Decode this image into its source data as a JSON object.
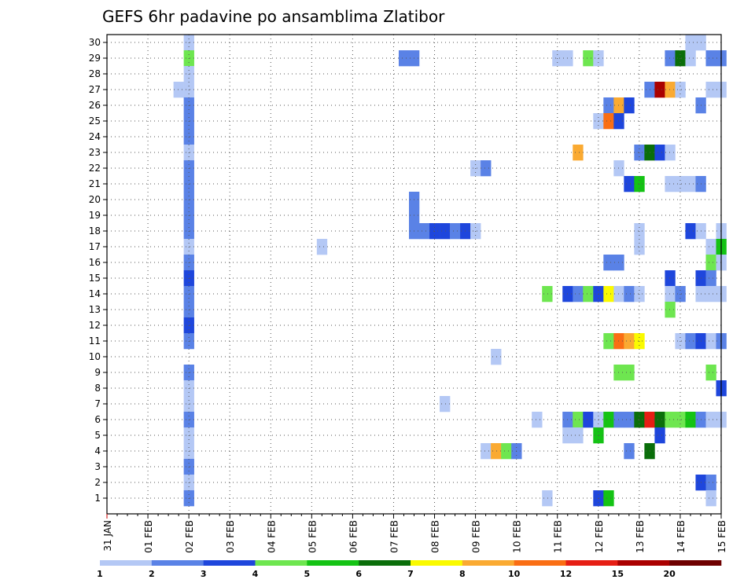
{
  "chart_data": {
    "type": "heatmap",
    "title": "GEFS 6hr padavine po ansamblima Zlatibor",
    "xlabel": "",
    "ylabel": "",
    "members": [
      1,
      2,
      3,
      4,
      5,
      6,
      7,
      8,
      9,
      10,
      11,
      12,
      13,
      14,
      15,
      16,
      17,
      18,
      19,
      20,
      21,
      22,
      23,
      24,
      25,
      26,
      27,
      28,
      29,
      30
    ],
    "x_start": "31 JAN",
    "x_step_hours": 6,
    "x_range_steps": [
      0,
      60
    ],
    "x_tick_labels": [
      "31 JAN",
      "01 FEB",
      "02 FEB",
      "03 FEB",
      "04 FEB",
      "05 FEB",
      "06 FEB",
      "07 FEB",
      "08 FEB",
      "09 FEB",
      "10 FEB",
      "11 FEB",
      "12 FEB",
      "13 FEB",
      "14 FEB",
      "15 FEB"
    ],
    "grid": true,
    "legend": {
      "placement": "bottom",
      "labels": [
        "1",
        "2",
        "3",
        "4",
        "5",
        "6",
        "7",
        "8",
        "10",
        "12",
        "15",
        "20"
      ],
      "colors": [
        "#b4c8f5",
        "#5a82e6",
        "#1e46dc",
        "#6ee650",
        "#14c314",
        "#0a6e0a",
        "#fafa00",
        "#faaa32",
        "#fa6e14",
        "#e61e14",
        "#aa0000",
        "#6e0000"
      ]
    },
    "cells": [
      {
        "member": 30,
        "step": 8,
        "color": "#b4c8f5"
      },
      {
        "member": 29,
        "step": 8,
        "color": "#6ee650"
      },
      {
        "member": 28,
        "step": 8,
        "color": "#b4c8f5"
      },
      {
        "member": 27,
        "step": 7,
        "color": "#b4c8f5"
      },
      {
        "member": 27,
        "step": 8,
        "color": "#b4c8f5"
      },
      {
        "member": 26,
        "step": 8,
        "color": "#5a82e6"
      },
      {
        "member": 25,
        "step": 8,
        "color": "#5a82e6"
      },
      {
        "member": 24,
        "step": 8,
        "color": "#5a82e6"
      },
      {
        "member": 23,
        "step": 8,
        "color": "#b4c8f5"
      },
      {
        "member": 22,
        "step": 8,
        "color": "#5a82e6"
      },
      {
        "member": 21,
        "step": 8,
        "color": "#5a82e6"
      },
      {
        "member": 20,
        "step": 8,
        "color": "#5a82e6"
      },
      {
        "member": 19,
        "step": 8,
        "color": "#5a82e6"
      },
      {
        "member": 18,
        "step": 8,
        "color": "#5a82e6"
      },
      {
        "member": 17,
        "step": 8,
        "color": "#b4c8f5"
      },
      {
        "member": 16,
        "step": 8,
        "color": "#5a82e6"
      },
      {
        "member": 15,
        "step": 8,
        "color": "#1e46dc"
      },
      {
        "member": 14,
        "step": 8,
        "color": "#5a82e6"
      },
      {
        "member": 13,
        "step": 8,
        "color": "#5a82e6"
      },
      {
        "member": 12,
        "step": 8,
        "color": "#1e46dc"
      },
      {
        "member": 11,
        "step": 8,
        "color": "#5a82e6"
      },
      {
        "member": 9,
        "step": 8,
        "color": "#5a82e6"
      },
      {
        "member": 8,
        "step": 8,
        "color": "#b4c8f5"
      },
      {
        "member": 7,
        "step": 8,
        "color": "#b4c8f5"
      },
      {
        "member": 6,
        "step": 8,
        "color": "#5a82e6"
      },
      {
        "member": 5,
        "step": 8,
        "color": "#b4c8f5"
      },
      {
        "member": 4,
        "step": 8,
        "color": "#b4c8f5"
      },
      {
        "member": 3,
        "step": 8,
        "color": "#5a82e6"
      },
      {
        "member": 2,
        "step": 8,
        "color": "#b4c8f5"
      },
      {
        "member": 1,
        "step": 8,
        "color": "#5a82e6"
      },
      {
        "member": 29,
        "step": 29,
        "color": "#5a82e6"
      },
      {
        "member": 29,
        "step": 30,
        "color": "#5a82e6"
      },
      {
        "member": 29,
        "step": 44,
        "color": "#b4c8f5"
      },
      {
        "member": 29,
        "step": 45,
        "color": "#b4c8f5"
      },
      {
        "member": 29,
        "step": 47,
        "color": "#6ee650"
      },
      {
        "member": 29,
        "step": 48,
        "color": "#b4c8f5"
      },
      {
        "member": 29,
        "step": 55,
        "color": "#5a82e6"
      },
      {
        "member": 29,
        "step": 56,
        "color": "#0a6e0a"
      },
      {
        "member": 29,
        "step": 57,
        "color": "#b4c8f5"
      },
      {
        "member": 29,
        "step": 59,
        "color": "#5a82e6"
      },
      {
        "member": 29,
        "step": 60,
        "color": "#5a82e6"
      },
      {
        "member": 30,
        "step": 57,
        "color": "#b4c8f5"
      },
      {
        "member": 30,
        "step": 58,
        "color": "#b4c8f5"
      },
      {
        "member": 27,
        "step": 53,
        "color": "#5a82e6"
      },
      {
        "member": 27,
        "step": 54,
        "color": "#aa0000"
      },
      {
        "member": 27,
        "step": 55,
        "color": "#faaa32"
      },
      {
        "member": 27,
        "step": 56,
        "color": "#b4c8f5"
      },
      {
        "member": 27,
        "step": 59,
        "color": "#b4c8f5"
      },
      {
        "member": 27,
        "step": 60,
        "color": "#b4c8f5"
      },
      {
        "member": 26,
        "step": 49,
        "color": "#5a82e6"
      },
      {
        "member": 26,
        "step": 50,
        "color": "#faaa32"
      },
      {
        "member": 26,
        "step": 51,
        "color": "#1e46dc"
      },
      {
        "member": 26,
        "step": 58,
        "color": "#5a82e6"
      },
      {
        "member": 25,
        "step": 48,
        "color": "#b4c8f5"
      },
      {
        "member": 25,
        "step": 49,
        "color": "#fa6e14"
      },
      {
        "member": 25,
        "step": 50,
        "color": "#1e46dc"
      },
      {
        "member": 23,
        "step": 46,
        "color": "#faaa32"
      },
      {
        "member": 23,
        "step": 52,
        "color": "#5a82e6"
      },
      {
        "member": 23,
        "step": 53,
        "color": "#0a6e0a"
      },
      {
        "member": 23,
        "step": 54,
        "color": "#1e46dc"
      },
      {
        "member": 23,
        "step": 55,
        "color": "#b4c8f5"
      },
      {
        "member": 22,
        "step": 36,
        "color": "#b4c8f5"
      },
      {
        "member": 22,
        "step": 37,
        "color": "#5a82e6"
      },
      {
        "member": 22,
        "step": 50,
        "color": "#b4c8f5"
      },
      {
        "member": 21,
        "step": 51,
        "color": "#1e46dc"
      },
      {
        "member": 21,
        "step": 52,
        "color": "#14c314"
      },
      {
        "member": 21,
        "step": 55,
        "color": "#b4c8f5"
      },
      {
        "member": 21,
        "step": 56,
        "color": "#b4c8f5"
      },
      {
        "member": 21,
        "step": 57,
        "color": "#b4c8f5"
      },
      {
        "member": 21,
        "step": 58,
        "color": "#5a82e6"
      },
      {
        "member": 20,
        "step": 30,
        "color": "#5a82e6"
      },
      {
        "member": 19,
        "step": 30,
        "color": "#5a82e6"
      },
      {
        "member": 18,
        "step": 30,
        "color": "#5a82e6"
      },
      {
        "member": 18,
        "step": 31,
        "color": "#5a82e6"
      },
      {
        "member": 18,
        "step": 32,
        "color": "#1e46dc"
      },
      {
        "member": 18,
        "step": 33,
        "color": "#1e46dc"
      },
      {
        "member": 18,
        "step": 34,
        "color": "#5a82e6"
      },
      {
        "member": 18,
        "step": 35,
        "color": "#1e46dc"
      },
      {
        "member": 18,
        "step": 36,
        "color": "#b4c8f5"
      },
      {
        "member": 18,
        "step": 52,
        "color": "#b4c8f5"
      },
      {
        "member": 18,
        "step": 57,
        "color": "#1e46dc"
      },
      {
        "member": 18,
        "step": 58,
        "color": "#b4c8f5"
      },
      {
        "member": 18,
        "step": 60,
        "color": "#b4c8f5"
      },
      {
        "member": 17,
        "step": 21,
        "color": "#b4c8f5"
      },
      {
        "member": 17,
        "step": 52,
        "color": "#b4c8f5"
      },
      {
        "member": 17,
        "step": 59,
        "color": "#b4c8f5"
      },
      {
        "member": 17,
        "step": 60,
        "color": "#14c314"
      },
      {
        "member": 16,
        "step": 59,
        "color": "#6ee650"
      },
      {
        "member": 16,
        "step": 60,
        "color": "#b4c8f5"
      },
      {
        "member": 16,
        "step": 49,
        "color": "#5a82e6"
      },
      {
        "member": 16,
        "step": 50,
        "color": "#5a82e6"
      },
      {
        "member": 15,
        "step": 55,
        "color": "#1e46dc"
      },
      {
        "member": 15,
        "step": 58,
        "color": "#1e46dc"
      },
      {
        "member": 15,
        "step": 59,
        "color": "#5a82e6"
      },
      {
        "member": 14,
        "step": 43,
        "color": "#6ee650"
      },
      {
        "member": 14,
        "step": 45,
        "color": "#1e46dc"
      },
      {
        "member": 14,
        "step": 46,
        "color": "#5a82e6"
      },
      {
        "member": 14,
        "step": 47,
        "color": "#6ee650"
      },
      {
        "member": 14,
        "step": 48,
        "color": "#1e46dc"
      },
      {
        "member": 14,
        "step": 49,
        "color": "#fafa00"
      },
      {
        "member": 14,
        "step": 50,
        "color": "#b4c8f5"
      },
      {
        "member": 14,
        "step": 51,
        "color": "#5a82e6"
      },
      {
        "member": 14,
        "step": 52,
        "color": "#b4c8f5"
      },
      {
        "member": 14,
        "step": 55,
        "color": "#b4c8f5"
      },
      {
        "member": 14,
        "step": 56,
        "color": "#5a82e6"
      },
      {
        "member": 14,
        "step": 58,
        "color": "#b4c8f5"
      },
      {
        "member": 14,
        "step": 59,
        "color": "#b4c8f5"
      },
      {
        "member": 14,
        "step": 60,
        "color": "#b4c8f5"
      },
      {
        "member": 13,
        "step": 55,
        "color": "#6ee650"
      },
      {
        "member": 11,
        "step": 49,
        "color": "#6ee650"
      },
      {
        "member": 11,
        "step": 50,
        "color": "#fa6e14"
      },
      {
        "member": 11,
        "step": 51,
        "color": "#faaa32"
      },
      {
        "member": 11,
        "step": 52,
        "color": "#fafa00"
      },
      {
        "member": 11,
        "step": 56,
        "color": "#b4c8f5"
      },
      {
        "member": 11,
        "step": 57,
        "color": "#5a82e6"
      },
      {
        "member": 11,
        "step": 58,
        "color": "#1e46dc"
      },
      {
        "member": 11,
        "step": 59,
        "color": "#b4c8f5"
      },
      {
        "member": 11,
        "step": 60,
        "color": "#5a82e6"
      },
      {
        "member": 10,
        "step": 38,
        "color": "#b4c8f5"
      },
      {
        "member": 9,
        "step": 50,
        "color": "#6ee650"
      },
      {
        "member": 9,
        "step": 51,
        "color": "#6ee650"
      },
      {
        "member": 9,
        "step": 59,
        "color": "#6ee650"
      },
      {
        "member": 8,
        "step": 60,
        "color": "#1e46dc"
      },
      {
        "member": 7,
        "step": 33,
        "color": "#b4c8f5"
      },
      {
        "member": 6,
        "step": 42,
        "color": "#b4c8f5"
      },
      {
        "member": 6,
        "step": 45,
        "color": "#5a82e6"
      },
      {
        "member": 6,
        "step": 46,
        "color": "#6ee650"
      },
      {
        "member": 6,
        "step": 47,
        "color": "#1e46dc"
      },
      {
        "member": 6,
        "step": 48,
        "color": "#b4c8f5"
      },
      {
        "member": 6,
        "step": 49,
        "color": "#14c314"
      },
      {
        "member": 6,
        "step": 50,
        "color": "#5a82e6"
      },
      {
        "member": 6,
        "step": 51,
        "color": "#5a82e6"
      },
      {
        "member": 6,
        "step": 52,
        "color": "#0a6e0a"
      },
      {
        "member": 6,
        "step": 53,
        "color": "#e61e14"
      },
      {
        "member": 6,
        "step": 54,
        "color": "#0a6e0a"
      },
      {
        "member": 6,
        "step": 55,
        "color": "#6ee650"
      },
      {
        "member": 6,
        "step": 56,
        "color": "#6ee650"
      },
      {
        "member": 6,
        "step": 57,
        "color": "#14c314"
      },
      {
        "member": 6,
        "step": 58,
        "color": "#5a82e6"
      },
      {
        "member": 6,
        "step": 59,
        "color": "#b4c8f5"
      },
      {
        "member": 6,
        "step": 60,
        "color": "#b4c8f5"
      },
      {
        "member": 5,
        "step": 45,
        "color": "#b4c8f5"
      },
      {
        "member": 5,
        "step": 46,
        "color": "#b4c8f5"
      },
      {
        "member": 5,
        "step": 48,
        "color": "#14c314"
      },
      {
        "member": 5,
        "step": 54,
        "color": "#1e46dc"
      },
      {
        "member": 4,
        "step": 37,
        "color": "#b4c8f5"
      },
      {
        "member": 4,
        "step": 38,
        "color": "#faaa32"
      },
      {
        "member": 4,
        "step": 39,
        "color": "#6ee650"
      },
      {
        "member": 4,
        "step": 40,
        "color": "#5a82e6"
      },
      {
        "member": 4,
        "step": 51,
        "color": "#5a82e6"
      },
      {
        "member": 4,
        "step": 53,
        "color": "#0a6e0a"
      },
      {
        "member": 2,
        "step": 58,
        "color": "#1e46dc"
      },
      {
        "member": 2,
        "step": 59,
        "color": "#5a82e6"
      },
      {
        "member": 1,
        "step": 43,
        "color": "#b4c8f5"
      },
      {
        "member": 1,
        "step": 48,
        "color": "#1e46dc"
      },
      {
        "member": 1,
        "step": 49,
        "color": "#14c314"
      },
      {
        "member": 1,
        "step": 59,
        "color": "#b4c8f5"
      }
    ]
  }
}
